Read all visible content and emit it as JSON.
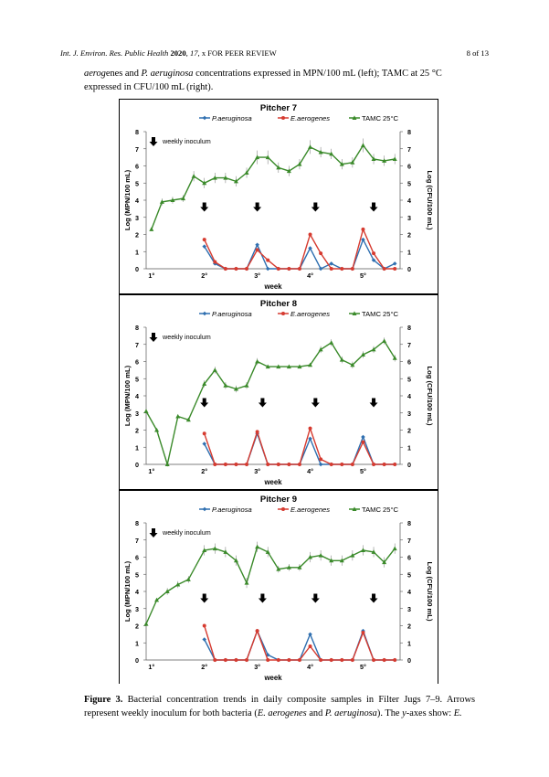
{
  "header": {
    "journal_left": "Int. J. Environ. Res. Public Health",
    "year": "2020",
    "volume": "17",
    "rest": ", x FOR PEER REVIEW",
    "page": "8 of 13"
  },
  "intro_text": {
    "italic1": "aerog",
    "plain1": "enes and ",
    "italic2": "P. aeruginosa",
    "plain2": " concentrations expressed in MPN/100 mL (left); TAMC at 25 °C expressed in CFU/100 mL (right)."
  },
  "caption": {
    "label": "Figure 3.",
    "text1": " Bacterial concentration trends in daily composite samples in Filter Jugs 7–9. Arrows represent weekly inoculum for both bacteria (",
    "italic1": "E. aerogenes",
    "text2": " and ",
    "italic2": "P. aeruginosa",
    "text3": "). The ",
    "italic3": "y",
    "text4": "-axes show: ",
    "italic4": "E."
  },
  "chart_data": [
    {
      "type": "line",
      "title": "Pitcher 7",
      "xlabel": "week",
      "ylabel_left": "Log (MPN/100 mL)",
      "ylabel_right": "Log (CFU/100 mL)",
      "ylim": [
        0,
        8
      ],
      "yticks": [
        "0",
        "1",
        "2",
        "3",
        "4",
        "5",
        "6",
        "7",
        "8"
      ],
      "x_tick_labels": [
        "1°",
        "2°",
        "3°",
        "4°",
        "5°"
      ],
      "x_tick_positions": [
        0,
        5,
        10,
        15,
        20
      ],
      "xlim": [
        -0.5,
        23.5
      ],
      "annotation": "weekly inoculum",
      "arrow_positions": [
        5,
        10,
        15.5,
        21
      ],
      "arrow_level": 3.6,
      "legend": {
        "placement": "top",
        "entries": [
          "P.aeruginosa",
          "E.aerogenes",
          "TAMC 25°C"
        ]
      },
      "series": [
        {
          "name": "TAMC 25°C",
          "color": "#3a8a2a",
          "marker": "triangle",
          "x": [
            0,
            1,
            2,
            3,
            4,
            5,
            6,
            7,
            8,
            9,
            10,
            11,
            12,
            13,
            14,
            15,
            16,
            17,
            18,
            19,
            20,
            21,
            22,
            23
          ],
          "values": [
            2.3,
            3.9,
            4.0,
            4.1,
            5.4,
            5.0,
            5.3,
            5.3,
            5.1,
            5.6,
            6.5,
            6.5,
            5.9,
            5.7,
            6.1,
            7.1,
            6.8,
            6.7,
            6.1,
            6.2,
            7.2,
            6.4,
            6.3,
            6.4
          ],
          "error": [
            0.1,
            0.2,
            0.2,
            0.2,
            0.3,
            0.3,
            0.3,
            0.3,
            0.3,
            0.3,
            0.4,
            0.4,
            0.3,
            0.3,
            0.3,
            0.4,
            0.3,
            0.3,
            0.3,
            0.3,
            0.4,
            0.3,
            0.3,
            0.3
          ]
        },
        {
          "name": "P.aeruginosa",
          "color": "#2f6fb0",
          "marker": "diamond",
          "x": [
            5,
            6,
            7,
            8,
            9,
            10,
            11,
            12,
            13,
            14,
            15,
            16,
            17,
            18,
            19,
            20,
            21,
            22,
            23
          ],
          "values": [
            1.3,
            0.3,
            0,
            0,
            0,
            1.4,
            0,
            0,
            0,
            0,
            1.2,
            0,
            0.3,
            0,
            0,
            1.7,
            0.5,
            0,
            0.3
          ]
        },
        {
          "name": "E.aerogenes",
          "color": "#d63b30",
          "marker": "circle",
          "x": [
            5,
            6,
            7,
            8,
            9,
            10,
            11,
            12,
            13,
            14,
            15,
            16,
            17,
            18,
            19,
            20,
            21,
            22,
            23
          ],
          "values": [
            1.7,
            0.4,
            0,
            0,
            0,
            1.1,
            0.5,
            0,
            0,
            0,
            2.0,
            0.9,
            0,
            0,
            0,
            2.3,
            0.9,
            0,
            0
          ]
        }
      ]
    },
    {
      "type": "line",
      "title": "Pitcher 8",
      "xlabel": "week",
      "ylabel_left": "Log (MPN/100 mL)",
      "ylabel_right": "Log (CFU/100 mL)",
      "ylim": [
        0,
        8
      ],
      "yticks": [
        "0",
        "1",
        "2",
        "3",
        "4",
        "5",
        "6",
        "7",
        "8"
      ],
      "x_tick_labels": [
        "1°",
        "2°",
        "3°",
        "4°",
        "5°"
      ],
      "x_tick_positions": [
        0,
        5,
        10,
        15,
        20
      ],
      "xlim": [
        -0.5,
        23.5
      ],
      "annotation": "weekly inoculum",
      "arrow_positions": [
        5,
        10.5,
        15.5,
        21
      ],
      "arrow_level": 3.6,
      "legend": {
        "placement": "top",
        "entries": [
          "P.aeruginosa",
          "E.aerogenes",
          "TAMC 25°C"
        ]
      },
      "series": [
        {
          "name": "TAMC 25°C",
          "color": "#3a8a2a",
          "marker": "triangle",
          "x": [
            -0.5,
            0.5,
            1.5,
            2.5,
            3.5,
            5,
            6,
            7,
            8,
            9,
            10,
            11,
            12,
            13,
            14,
            15,
            16,
            17,
            18,
            19,
            20,
            21,
            22,
            23
          ],
          "values": [
            3.1,
            2.0,
            0.0,
            2.8,
            2.6,
            4.7,
            5.5,
            4.6,
            4.4,
            4.6,
            6.0,
            5.7,
            5.7,
            5.7,
            5.7,
            5.8,
            6.7,
            7.1,
            6.1,
            5.8,
            6.4,
            6.7,
            7.2,
            6.2
          ],
          "error": [
            0.1,
            0.1,
            0.1,
            0.1,
            0.1,
            0.2,
            0.2,
            0.2,
            0.2,
            0.2,
            0.2,
            0.1,
            0.1,
            0.1,
            0.1,
            0.1,
            0.2,
            0.2,
            0.2,
            0.2,
            0.2,
            0.2,
            0.2,
            0.2
          ]
        },
        {
          "name": "P.aeruginosa",
          "color": "#2f6fb0",
          "marker": "diamond",
          "x": [
            5,
            6,
            7,
            8,
            9,
            10,
            11,
            12,
            13,
            14,
            15,
            16,
            17,
            18,
            19,
            20,
            21,
            22,
            23
          ],
          "values": [
            1.2,
            0,
            0,
            0,
            0,
            1.8,
            0,
            0,
            0,
            0,
            1.5,
            0,
            0,
            0,
            0,
            1.6,
            0,
            0,
            0
          ]
        },
        {
          "name": "E.aerogenes",
          "color": "#d63b30",
          "marker": "circle",
          "x": [
            5,
            6,
            7,
            8,
            9,
            10,
            11,
            12,
            13,
            14,
            15,
            16,
            17,
            18,
            19,
            20,
            21,
            22,
            23
          ],
          "values": [
            1.8,
            0,
            0,
            0,
            0,
            1.9,
            0,
            0,
            0,
            0,
            2.1,
            0.3,
            0,
            0,
            0,
            1.3,
            0,
            0,
            0
          ]
        }
      ]
    },
    {
      "type": "line",
      "title": "Pitcher 9",
      "xlabel": "week",
      "ylabel_left": "Log (MPN/100 mL)",
      "ylabel_right": "Log (CFU/100 mL)",
      "ylim": [
        0,
        8
      ],
      "yticks": [
        "0",
        "1",
        "2",
        "3",
        "4",
        "5",
        "6",
        "7",
        "8"
      ],
      "x_tick_labels": [
        "1°",
        "2°",
        "3°",
        "4°",
        "5°"
      ],
      "x_tick_positions": [
        0,
        5,
        10,
        15,
        20
      ],
      "xlim": [
        -0.5,
        23.5
      ],
      "annotation": "weekly inoculum",
      "arrow_positions": [
        5,
        10.5,
        15.5,
        21
      ],
      "arrow_level": 3.6,
      "legend": {
        "placement": "top",
        "entries": [
          "P.aeruginosa",
          "E.aerogenes",
          "TAMC 25°C"
        ]
      },
      "series": [
        {
          "name": "TAMC 25°C",
          "color": "#3a8a2a",
          "marker": "triangle",
          "x": [
            -0.5,
            0.5,
            1.5,
            2.5,
            3.5,
            5,
            6,
            7,
            8,
            9,
            10,
            11,
            12,
            13,
            14,
            15,
            16,
            17,
            18,
            19,
            20,
            21,
            22,
            23
          ],
          "values": [
            2.1,
            3.5,
            4.0,
            4.4,
            4.7,
            6.4,
            6.5,
            6.3,
            5.8,
            4.5,
            6.6,
            6.3,
            5.3,
            5.4,
            5.4,
            6.0,
            6.1,
            5.8,
            5.8,
            6.1,
            6.4,
            6.3,
            5.7,
            6.5
          ],
          "error": [
            0.1,
            0.1,
            0.2,
            0.2,
            0.2,
            0.3,
            0.3,
            0.3,
            0.3,
            0.3,
            0.3,
            0.3,
            0.2,
            0.2,
            0.2,
            0.3,
            0.3,
            0.3,
            0.3,
            0.3,
            0.3,
            0.3,
            0.3,
            0.3
          ]
        },
        {
          "name": "P.aeruginosa",
          "color": "#2f6fb0",
          "marker": "diamond",
          "x": [
            5,
            6,
            7,
            8,
            9,
            10,
            11,
            12,
            13,
            14,
            15,
            16,
            17,
            18,
            19,
            20,
            21,
            22,
            23
          ],
          "values": [
            1.2,
            0,
            0,
            0,
            0,
            1.7,
            0.3,
            0,
            0,
            0,
            1.5,
            0,
            0,
            0,
            0,
            1.7,
            0,
            0,
            0
          ]
        },
        {
          "name": "E.aerogenes",
          "color": "#d63b30",
          "marker": "circle",
          "x": [
            5,
            6,
            7,
            8,
            9,
            10,
            11,
            12,
            13,
            14,
            15,
            16,
            17,
            18,
            19,
            20,
            21,
            22,
            23
          ],
          "values": [
            2.0,
            0,
            0,
            0,
            0,
            1.7,
            0,
            0,
            0,
            0,
            0.8,
            0,
            0,
            0,
            0,
            1.6,
            0,
            0,
            0
          ]
        }
      ]
    }
  ]
}
